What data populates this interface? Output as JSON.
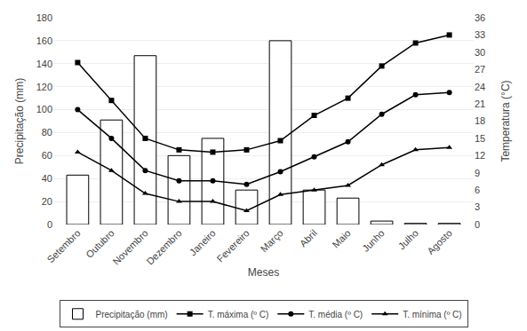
{
  "chart_data": {
    "type": "bar",
    "xlabel": "Meses",
    "ylabel": "Precipitação (mm)",
    "y2label": "Temperatura (°C)",
    "categories": [
      "Setembro",
      "Outubro",
      "Novembro",
      "Dezembro",
      "Janeiro",
      "Fevereiro",
      "Março",
      "Abril",
      "Maio",
      "Junho",
      "Julho",
      "Agosto"
    ],
    "series": [
      {
        "name": "Precipitação (mm)",
        "type": "bar",
        "color": "#ffffff",
        "values": [
          43,
          91,
          147,
          60,
          75,
          30,
          160,
          30,
          23,
          3,
          1,
          1
        ]
      },
      {
        "name": "T. máxima (º C)",
        "type": "line",
        "axis": "y2",
        "color": "#000000",
        "marker": "square",
        "line_style": "solid",
        "values": [
          28.2,
          21.6,
          15.0,
          13.0,
          12.6,
          13.0,
          14.6,
          19.0,
          22.0,
          27.6,
          31.6,
          33.0
        ]
      },
      {
        "name": "T. média (º C)",
        "type": "line",
        "axis": "y2",
        "color": "#000000",
        "marker": "circle",
        "line_style": "solid",
        "values": [
          20.0,
          15.0,
          9.4,
          7.6,
          7.6,
          7.0,
          9.2,
          11.8,
          14.4,
          19.2,
          22.6,
          23.0
        ]
      },
      {
        "name": "T. mínima (º C)",
        "type": "line",
        "axis": "y2",
        "color": "#000000",
        "marker": "triangle-up",
        "line_style": "solid",
        "values": [
          12.6,
          9.4,
          5.4,
          4.0,
          4.0,
          2.4,
          5.2,
          6.0,
          6.8,
          10.4,
          13.0,
          13.4
        ]
      }
    ],
    "ylim": [
      0,
      180
    ],
    "yticks": [
      0,
      20,
      40,
      60,
      80,
      100,
      120,
      140,
      160,
      180
    ],
    "y2lim": [
      0,
      36
    ],
    "y2ticks": [
      0,
      3,
      6,
      9,
      12,
      15,
      18,
      21,
      24,
      27,
      30,
      33,
      36
    ],
    "grid": true,
    "legend": "bottom"
  }
}
